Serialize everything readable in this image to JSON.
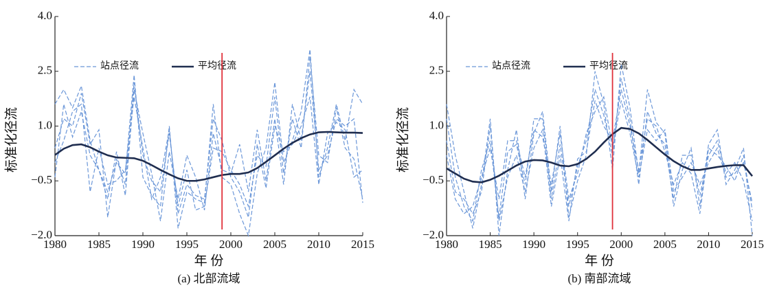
{
  "chart_data": [
    {
      "type": "line",
      "title": "(a) 北部流域",
      "xlabel": "年 份",
      "ylabel": "标准化径流",
      "x": [
        1980,
        1981,
        1982,
        1983,
        1984,
        1985,
        1986,
        1987,
        1988,
        1989,
        1990,
        1991,
        1992,
        1993,
        1994,
        1995,
        1996,
        1997,
        1998,
        1999,
        2000,
        2001,
        2002,
        2003,
        2004,
        2005,
        2006,
        2007,
        2008,
        2009,
        2010,
        2011,
        2012,
        2013,
        2014,
        2015
      ],
      "xlim": [
        1980,
        2015
      ],
      "xticks": [
        1980,
        1985,
        1990,
        1995,
        2000,
        2005,
        2010,
        2015
      ],
      "ylim": [
        -2,
        4
      ],
      "yticks": [
        {
          "value": -2,
          "label": "−2.0"
        },
        {
          "value": -0.5,
          "label": "−0.5"
        },
        {
          "value": 1,
          "label": "1.0"
        },
        {
          "value": 2.5,
          "label": "2.5"
        },
        {
          "value": 4,
          "label": "4.0"
        }
      ],
      "series": [
        {
          "name": "站点径流",
          "color": "#6a96d8",
          "style": "dashed",
          "lines": [
            [
              1.6,
              2.0,
              1.5,
              2.1,
              0.6,
              -0.2,
              -0.8,
              0.0,
              -0.3,
              2.4,
              -0.4,
              -0.9,
              -1.2,
              1.0,
              -1.8,
              -0.8,
              -1.0,
              -1.1,
              1.6,
              -0.4,
              -0.6,
              -1.4,
              -2.0,
              -0.3,
              0.4,
              2.2,
              0.0,
              0.6,
              1.4,
              3.1,
              -0.4,
              0.4,
              1.6,
              0.6,
              2.0,
              1.6
            ],
            [
              0.4,
              1.2,
              1.0,
              1.9,
              0.5,
              0.9,
              -1.5,
              0.1,
              -0.6,
              2.2,
              0.2,
              -0.5,
              -0.8,
              0.8,
              -1.2,
              -0.2,
              -1.3,
              -1.2,
              0.4,
              0.3,
              -0.2,
              -0.6,
              -1.2,
              0.2,
              -0.1,
              1.8,
              -0.3,
              1.2,
              0.4,
              2.9,
              0.2,
              0.0,
              1.5,
              0.4,
              0.1,
              -1.0
            ],
            [
              0.0,
              0.6,
              1.4,
              1.6,
              -0.8,
              0.4,
              -0.6,
              -0.5,
              -0.2,
              1.8,
              0.4,
              -1.0,
              -0.4,
              0.9,
              -1.4,
              -0.6,
              -0.9,
              -1.0,
              1.2,
              0.6,
              -0.4,
              -0.8,
              -1.5,
              0.5,
              -0.7,
              1.0,
              0.3,
              0.5,
              1.0,
              1.8,
              -0.6,
              0.8,
              1.1,
              0.9,
              -0.4,
              -0.2
            ],
            [
              -0.4,
              1.6,
              0.7,
              1.4,
              0.2,
              -0.2,
              -1.0,
              0.3,
              -0.9,
              2.0,
              0.8,
              -0.3,
              -1.6,
              0.3,
              -1.0,
              0.2,
              -0.4,
              -1.3,
              0.8,
              -0.2,
              -0.3,
              0.5,
              -0.8,
              0.9,
              -0.5,
              1.2,
              -0.6,
              1.6,
              0.6,
              2.5,
              -0.2,
              0.2,
              1.2,
              1.0,
              1.2,
              -1.1
            ]
          ]
        },
        {
          "name": "平均径流",
          "color": "#1f2d4f",
          "style": "solid",
          "values": [
            0.21,
            0.38,
            0.48,
            0.5,
            0.42,
            0.3,
            0.2,
            0.14,
            0.13,
            0.12,
            0.05,
            -0.07,
            -0.2,
            -0.32,
            -0.43,
            -0.5,
            -0.5,
            -0.46,
            -0.4,
            -0.34,
            -0.31,
            -0.31,
            -0.27,
            -0.15,
            0.02,
            0.2,
            0.38,
            0.54,
            0.67,
            0.77,
            0.83,
            0.84,
            0.83,
            0.82,
            0.82,
            0.81
          ]
        }
      ],
      "vline": {
        "x": 1999,
        "color": "#e0303a"
      }
    },
    {
      "type": "line",
      "title": "(b) 南部流域",
      "xlabel": "年 份",
      "ylabel": "标准化径流",
      "x": [
        1980,
        1981,
        1982,
        1983,
        1984,
        1985,
        1986,
        1987,
        1988,
        1989,
        1990,
        1991,
        1992,
        1993,
        1994,
        1995,
        1996,
        1997,
        1998,
        1999,
        2000,
        2001,
        2002,
        2003,
        2004,
        2005,
        2006,
        2007,
        2008,
        2009,
        2010,
        2011,
        2012,
        2013,
        2014,
        2015
      ],
      "xlim": [
        1980,
        2015
      ],
      "xticks": [
        1980,
        1985,
        1990,
        1995,
        2000,
        2005,
        2010,
        2015
      ],
      "ylim": [
        -2,
        4
      ],
      "yticks": [
        {
          "value": -2,
          "label": "−2.0"
        },
        {
          "value": -0.5,
          "label": "−0.5"
        },
        {
          "value": 1,
          "label": "1.0"
        },
        {
          "value": 2.5,
          "label": "2.5"
        },
        {
          "value": 4,
          "label": "4.0"
        }
      ],
      "series": [
        {
          "name": "站点径流",
          "color": "#6a96d8",
          "style": "dashed",
          "lines": [
            [
              1.6,
              0.2,
              -0.8,
              -1.8,
              -0.6,
              1.2,
              -2.0,
              -0.2,
              0.9,
              -1.0,
              0.8,
              1.4,
              -0.8,
              1.0,
              -1.5,
              -0.5,
              0.2,
              2.5,
              1.6,
              -0.2,
              2.7,
              1.5,
              -0.3,
              2.0,
              1.1,
              0.8,
              -1.2,
              -0.2,
              0.4,
              -1.2,
              0.5,
              0.9,
              -0.6,
              -0.2,
              0.4,
              -2.0
            ],
            [
              1.2,
              -0.4,
              -1.2,
              -1.6,
              -0.2,
              0.6,
              -1.5,
              0.3,
              0.5,
              -0.6,
              1.2,
              1.2,
              -1.0,
              0.5,
              -1.2,
              -0.1,
              0.6,
              2.0,
              1.3,
              0.2,
              2.3,
              1.2,
              -0.6,
              1.4,
              0.8,
              0.5,
              -1.0,
              0.2,
              0.2,
              -0.9,
              0.2,
              0.6,
              -0.3,
              0.0,
              -0.5,
              -1.6
            ],
            [
              0.6,
              -0.8,
              -1.0,
              -1.4,
              -0.8,
              1.0,
              -1.6,
              -0.4,
              0.2,
              -0.8,
              0.4,
              0.9,
              -1.2,
              0.2,
              -1.6,
              0.1,
              0.3,
              1.7,
              1.0,
              0.6,
              2.0,
              1.0,
              -0.2,
              1.2,
              1.0,
              0.3,
              -0.6,
              0.0,
              -0.3,
              -1.4,
              0.4,
              0.2,
              -0.1,
              -0.5,
              0.2,
              -1.3
            ],
            [
              0.2,
              -1.0,
              -1.4,
              -1.2,
              -0.4,
              0.4,
              -1.0,
              0.6,
              0.6,
              -0.4,
              0.9,
              0.7,
              -0.6,
              0.8,
              -1.0,
              -0.3,
              0.8,
              1.4,
              1.8,
              0.4,
              1.7,
              0.8,
              -0.4,
              0.9,
              0.6,
              0.9,
              -0.8,
              -0.4,
              0.0,
              -0.6,
              0.0,
              0.4,
              -0.4,
              -0.3,
              0.0,
              -1.1
            ]
          ]
        },
        {
          "name": "平均径流",
          "color": "#1f2d4f",
          "style": "solid",
          "values": [
            -0.16,
            -0.3,
            -0.44,
            -0.52,
            -0.54,
            -0.47,
            -0.36,
            -0.22,
            -0.08,
            0.03,
            0.07,
            0.06,
            0.0,
            -0.08,
            -0.1,
            -0.04,
            0.1,
            0.3,
            0.55,
            0.78,
            0.95,
            0.92,
            0.8,
            0.62,
            0.42,
            0.22,
            0.04,
            -0.1,
            -0.2,
            -0.2,
            -0.16,
            -0.12,
            -0.09,
            -0.07,
            -0.07,
            -0.37
          ]
        }
      ],
      "vline": {
        "x": 1999,
        "color": "#e0303a"
      }
    }
  ]
}
